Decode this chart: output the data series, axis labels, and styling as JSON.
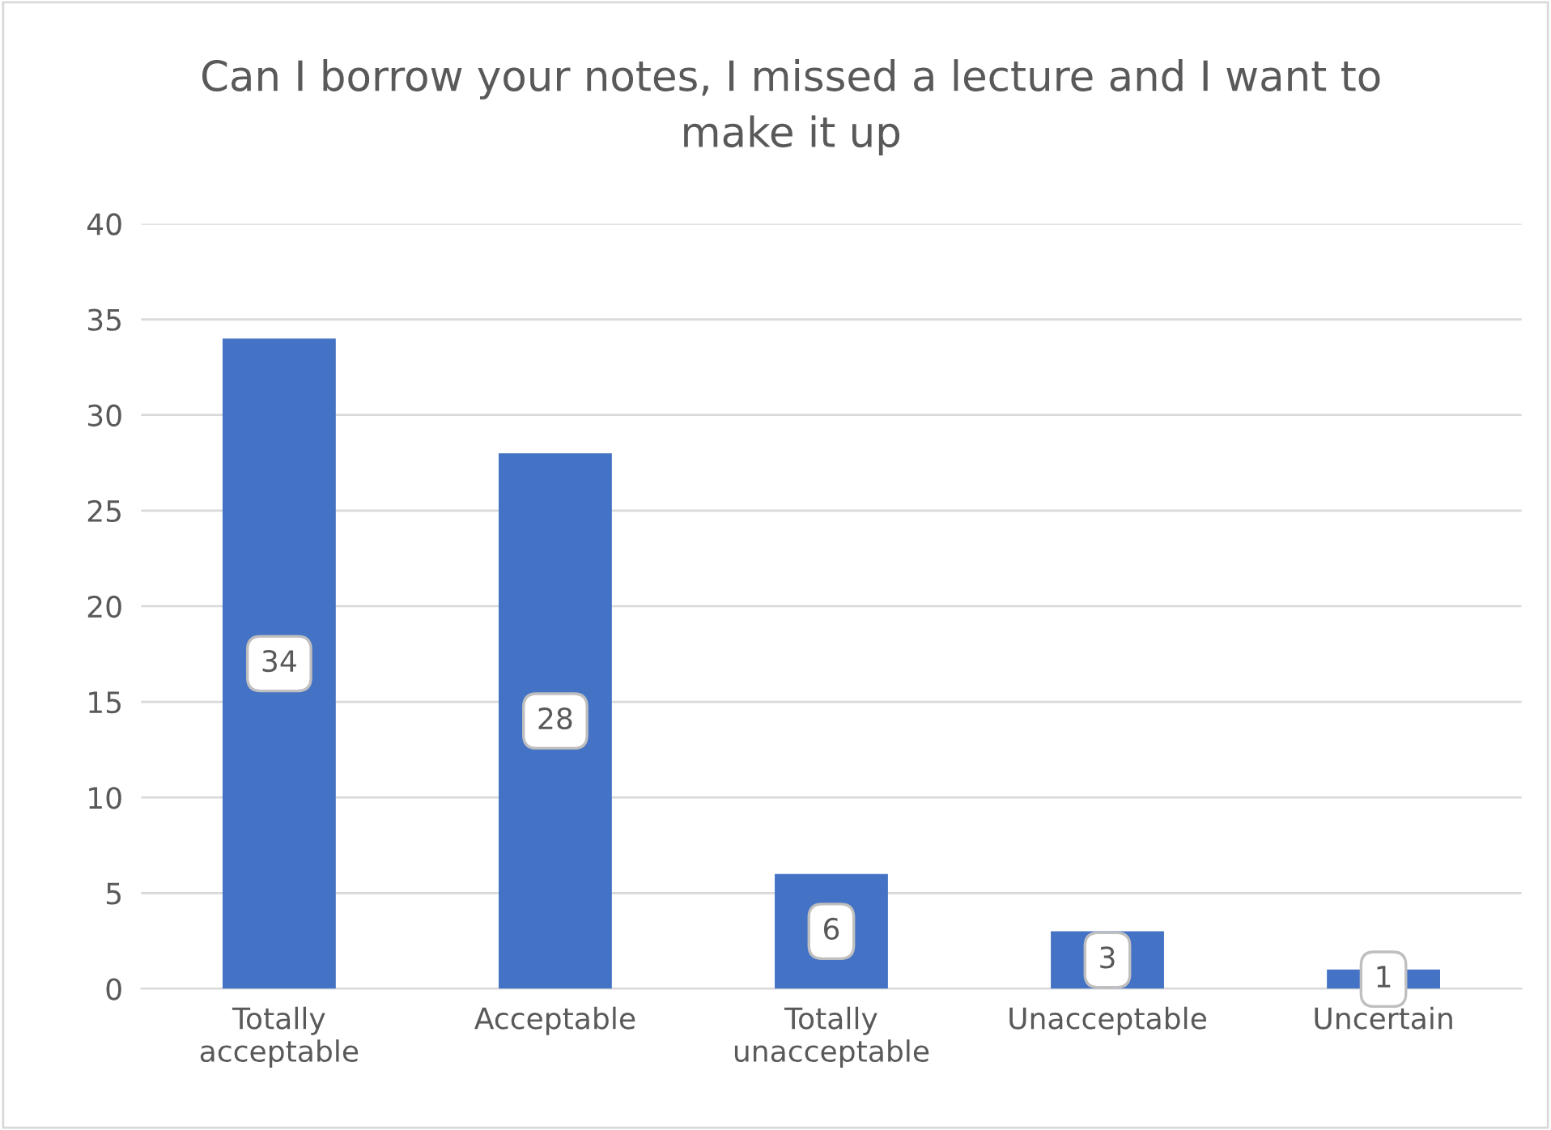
{
  "chart_data": {
    "type": "bar",
    "title": "Can I borrow your notes, I missed a lecture and I want to make it up",
    "categories": [
      "Totally acceptable",
      "Acceptable",
      "Totally unacceptable",
      "Unacceptable",
      "Uncertain"
    ],
    "values": [
      34,
      28,
      6,
      3,
      1
    ],
    "color": "#4472c4",
    "ylim": [
      0,
      40
    ],
    "yticks": [
      0,
      5,
      10,
      15,
      20,
      25,
      30,
      35,
      40
    ],
    "grid": "y",
    "data_labels": true
  }
}
